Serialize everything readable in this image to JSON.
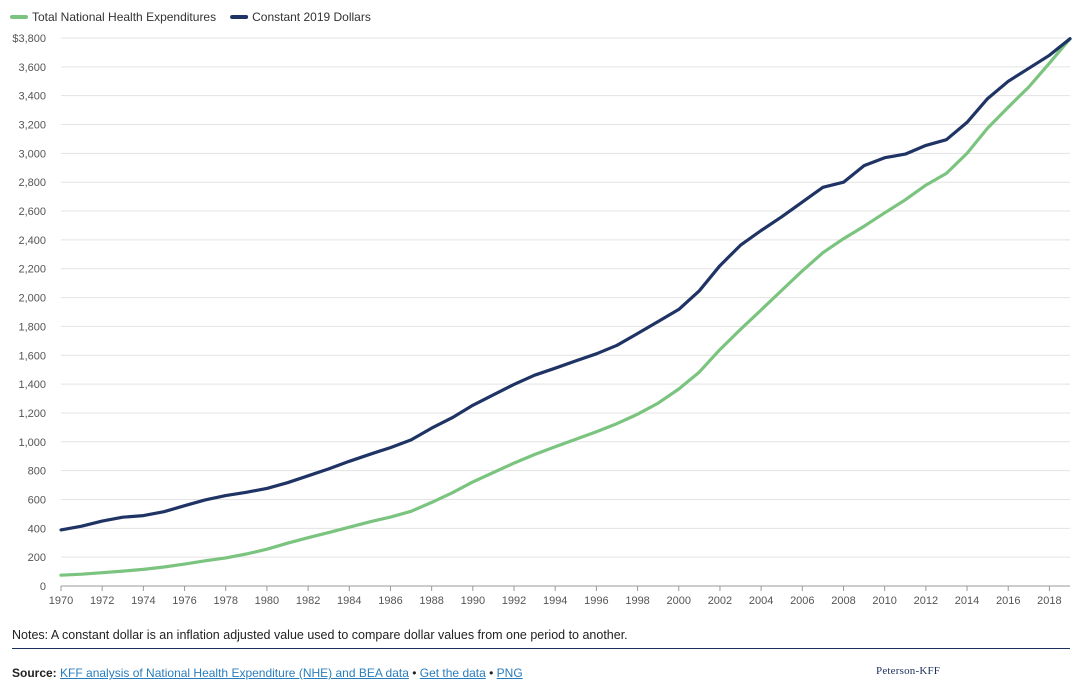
{
  "chart_data": {
    "type": "line",
    "title": "",
    "xlabel": "",
    "ylabel": "",
    "ylim": [
      0,
      3800
    ],
    "yticks": [
      0,
      200,
      400,
      600,
      800,
      1000,
      1200,
      1400,
      1600,
      1800,
      2000,
      2200,
      2400,
      2600,
      2800,
      3000,
      3200,
      3400,
      3600,
      3800
    ],
    "ytick_labels": [
      "0",
      "200",
      "400",
      "600",
      "800",
      "1,000",
      "1,200",
      "1,400",
      "1,600",
      "1,800",
      "2,000",
      "2,200",
      "2,400",
      "2,600",
      "2,800",
      "3,000",
      "3,200",
      "3,400",
      "3,600",
      "$3,800"
    ],
    "xlim": [
      1970,
      2019
    ],
    "xticks": [
      1970,
      1972,
      1974,
      1976,
      1978,
      1980,
      1982,
      1984,
      1986,
      1988,
      1990,
      1992,
      1994,
      1996,
      1998,
      2000,
      2002,
      2004,
      2006,
      2008,
      2010,
      2012,
      2014,
      2016,
      2018
    ],
    "grid": "horizontal",
    "legend_position": "top-left",
    "x": [
      1970,
      1971,
      1972,
      1973,
      1974,
      1975,
      1976,
      1977,
      1978,
      1979,
      1980,
      1981,
      1982,
      1983,
      1984,
      1985,
      1986,
      1987,
      1988,
      1989,
      1990,
      1991,
      1992,
      1993,
      1994,
      1995,
      1996,
      1997,
      1998,
      1999,
      2000,
      2001,
      2002,
      2003,
      2004,
      2005,
      2006,
      2007,
      2008,
      2009,
      2010,
      2011,
      2012,
      2013,
      2014,
      2015,
      2016,
      2017,
      2018,
      2019
    ],
    "series": [
      {
        "name": "Total National Health Expenditures",
        "color": "#7bc47f",
        "values": [
          75,
          82,
          92,
          103,
          115,
          132,
          152,
          175,
          195,
          222,
          255,
          297,
          335,
          370,
          408,
          445,
          478,
          518,
          580,
          646,
          722,
          787,
          852,
          912,
          965,
          1017,
          1070,
          1126,
          1191,
          1268,
          1366,
          1483,
          1639,
          1779,
          1914,
          2050,
          2185,
          2311,
          2408,
          2495,
          2588,
          2678,
          2780,
          2861,
          3000,
          3175,
          3320,
          3460,
          3625,
          3795
        ]
      },
      {
        "name": "Constant 2019 Dollars",
        "color": "#1f3465",
        "values": [
          389,
          415,
          450,
          477,
          488,
          515,
          557,
          597,
          627,
          650,
          677,
          716,
          764,
          812,
          865,
          913,
          960,
          1013,
          1095,
          1167,
          1253,
          1326,
          1398,
          1462,
          1510,
          1561,
          1610,
          1669,
          1751,
          1834,
          1918,
          2047,
          2221,
          2363,
          2465,
          2560,
          2662,
          2765,
          2800,
          2915,
          2970,
          2995,
          3055,
          3095,
          3215,
          3380,
          3500,
          3590,
          3680,
          3795
        ]
      }
    ]
  },
  "notes": "Notes: A constant dollar is an inflation adjusted value used to compare dollar values from one period to another.",
  "source": {
    "label": "Source:",
    "link1": "KFF analysis of National Health Expenditure (NHE) and BEA data",
    "sep1": " • ",
    "link2": "Get the data",
    "sep2": " • ",
    "link3": "PNG"
  },
  "logo": "Peterson-KFF"
}
